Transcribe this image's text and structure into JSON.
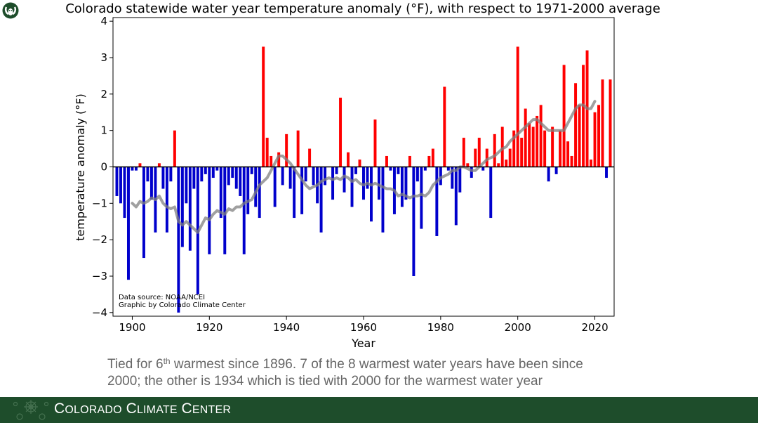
{
  "chart_data": {
    "type": "bar",
    "title": "Colorado statewide water year temperature anomaly (°F), with respect to 1971-2000 average",
    "xlabel": "Year",
    "ylabel": "temperature anomaly (°F)",
    "xlim": [
      1895,
      2025
    ],
    "ylim": [
      -4.1,
      4.1
    ],
    "xticks": [
      1900,
      1920,
      1940,
      1960,
      1980,
      2000,
      2020
    ],
    "yticks": [
      -4,
      -3,
      -2,
      -1,
      0,
      1,
      2,
      3,
      4
    ],
    "xtick_labels": [
      "1900",
      "1920",
      "1940",
      "1960",
      "1980",
      "2000",
      "2020"
    ],
    "ytick_labels": [
      "−4",
      "−3",
      "−2",
      "−1",
      "0",
      "1",
      "2",
      "3",
      "4"
    ],
    "positive_color": "#ff0000",
    "negative_color": "#0000cc",
    "smooth_color": "#808080",
    "annotation": [
      "Data source: NOAA/NCEI",
      "Graphic by Colorado Climate Center"
    ],
    "series": [
      {
        "name": "annual anomaly",
        "x": [
          1896,
          1897,
          1898,
          1899,
          1900,
          1901,
          1902,
          1903,
          1904,
          1905,
          1906,
          1907,
          1908,
          1909,
          1910,
          1911,
          1912,
          1913,
          1914,
          1915,
          1916,
          1917,
          1918,
          1919,
          1920,
          1921,
          1922,
          1923,
          1924,
          1925,
          1926,
          1927,
          1928,
          1929,
          1930,
          1931,
          1932,
          1933,
          1934,
          1935,
          1936,
          1937,
          1938,
          1939,
          1940,
          1941,
          1942,
          1943,
          1944,
          1945,
          1946,
          1947,
          1948,
          1949,
          1950,
          1951,
          1952,
          1953,
          1954,
          1955,
          1956,
          1957,
          1958,
          1959,
          1960,
          1961,
          1962,
          1963,
          1964,
          1965,
          1966,
          1967,
          1968,
          1969,
          1970,
          1971,
          1972,
          1973,
          1974,
          1975,
          1976,
          1977,
          1978,
          1979,
          1980,
          1981,
          1982,
          1983,
          1984,
          1985,
          1986,
          1987,
          1988,
          1989,
          1990,
          1991,
          1992,
          1993,
          1994,
          1995,
          1996,
          1997,
          1998,
          1999,
          2000,
          2001,
          2002,
          2003,
          2004,
          2005,
          2006,
          2007,
          2008,
          2009,
          2010,
          2011,
          2012,
          2013,
          2014,
          2015,
          2016,
          2017,
          2018,
          2019,
          2020,
          2021,
          2022,
          2023,
          2024
        ],
        "values": [
          -0.8,
          -1.0,
          -1.4,
          -3.1,
          -0.1,
          -0.1,
          0.1,
          -2.5,
          -0.4,
          -0.9,
          -1.8,
          0.1,
          -0.6,
          -1.8,
          -0.4,
          1.0,
          -4.0,
          -2.2,
          -1.0,
          -2.3,
          -0.6,
          -3.5,
          -0.4,
          -0.2,
          -2.4,
          -0.3,
          -0.1,
          -1.4,
          -2.4,
          -0.5,
          -0.3,
          -0.6,
          -0.8,
          -2.4,
          -1.3,
          -0.2,
          -1.1,
          -1.4,
          3.3,
          0.8,
          0.3,
          -1.1,
          0.4,
          -0.5,
          0.9,
          -0.6,
          -1.4,
          1.0,
          -1.3,
          -0.4,
          0.5,
          -0.5,
          -1.0,
          -1.8,
          -0.5,
          0.0,
          -0.9,
          -0.2,
          1.9,
          -0.7,
          0.4,
          -1.1,
          -0.2,
          0.2,
          -0.9,
          -0.6,
          -1.5,
          1.3,
          -0.9,
          -1.8,
          0.3,
          -0.1,
          -1.3,
          -0.2,
          -1.1,
          -0.9,
          0.3,
          -3.0,
          -0.4,
          -1.7,
          -0.1,
          0.3,
          0.5,
          -1.9,
          -0.5,
          2.2,
          -0.1,
          -0.6,
          -1.6,
          -0.7,
          0.8,
          0.1,
          -0.3,
          0.5,
          0.8,
          -0.1,
          0.5,
          -1.4,
          0.9,
          0.1,
          1.1,
          0.2,
          0.5,
          1.0,
          3.3,
          0.8,
          1.6,
          1.2,
          1.1,
          1.4,
          1.7,
          1.0,
          -0.4,
          1.1,
          -0.2,
          1.0,
          2.8,
          0.7,
          0.3,
          2.3,
          1.7,
          2.8,
          3.2,
          0.2,
          1.5,
          1.7,
          2.4,
          -0.3,
          2.4
        ]
      },
      {
        "name": "smoothed (running mean)",
        "x": [
          1900,
          1901,
          1902,
          1903,
          1904,
          1905,
          1906,
          1907,
          1908,
          1909,
          1910,
          1911,
          1912,
          1913,
          1914,
          1915,
          1916,
          1917,
          1918,
          1919,
          1920,
          1921,
          1922,
          1923,
          1924,
          1925,
          1926,
          1927,
          1928,
          1929,
          1930,
          1931,
          1932,
          1933,
          1934,
          1935,
          1936,
          1937,
          1938,
          1939,
          1940,
          1941,
          1942,
          1943,
          1944,
          1945,
          1946,
          1947,
          1948,
          1949,
          1950,
          1951,
          1952,
          1953,
          1954,
          1955,
          1956,
          1957,
          1958,
          1959,
          1960,
          1961,
          1962,
          1963,
          1964,
          1965,
          1966,
          1967,
          1968,
          1969,
          1970,
          1971,
          1972,
          1973,
          1974,
          1975,
          1976,
          1977,
          1978,
          1979,
          1980,
          1981,
          1982,
          1983,
          1984,
          1985,
          1986,
          1987,
          1988,
          1989,
          1990,
          1991,
          1992,
          1993,
          1994,
          1995,
          1996,
          1997,
          1998,
          1999,
          2000,
          2001,
          2002,
          2003,
          2004,
          2005,
          2006,
          2007,
          2008,
          2009,
          2010,
          2011,
          2012,
          2013,
          2014,
          2015,
          2016,
          2017,
          2018,
          2019,
          2020
        ],
        "values": [
          -1.0,
          -1.1,
          -0.95,
          -1.0,
          -0.95,
          -0.85,
          -0.9,
          -0.8,
          -1.0,
          -1.1,
          -1.15,
          -1.1,
          -1.5,
          -1.6,
          -1.5,
          -1.6,
          -1.7,
          -1.8,
          -1.6,
          -1.4,
          -1.45,
          -1.3,
          -1.2,
          -1.25,
          -1.3,
          -1.15,
          -1.2,
          -1.1,
          -1.1,
          -1.0,
          -0.95,
          -0.9,
          -0.7,
          -0.5,
          -0.4,
          -0.3,
          -0.1,
          0.1,
          0.3,
          0.3,
          0.2,
          0.1,
          -0.05,
          -0.2,
          -0.35,
          -0.5,
          -0.6,
          -0.55,
          -0.5,
          -0.4,
          -0.35,
          -0.3,
          -0.35,
          -0.3,
          -0.35,
          -0.25,
          -0.3,
          -0.4,
          -0.35,
          -0.45,
          -0.5,
          -0.45,
          -0.5,
          -0.45,
          -0.5,
          -0.55,
          -0.6,
          -0.6,
          -0.65,
          -0.8,
          -0.75,
          -0.8,
          -0.85,
          -0.8,
          -0.8,
          -0.75,
          -0.8,
          -0.7,
          -0.5,
          -0.4,
          -0.3,
          -0.25,
          -0.2,
          -0.1,
          -0.1,
          0.0,
          0.0,
          -0.05,
          -0.1,
          -0.1,
          0.0,
          0.1,
          0.2,
          0.25,
          0.3,
          0.4,
          0.5,
          0.55,
          0.7,
          0.8,
          0.9,
          1.0,
          1.1,
          1.2,
          1.3,
          1.3,
          1.2,
          1.1,
          1.0,
          1.0,
          1.0,
          1.0,
          1.0,
          1.2,
          1.4,
          1.6,
          1.7,
          1.7,
          1.6,
          1.6,
          1.8
        ]
      }
    ]
  },
  "caption": {
    "line1_pre": "Tied for 6",
    "line1_sup": "th",
    "line1_post": " warmest since 1896. 7 of the 8 warmest water years have been since",
    "line2": "2000; the other is 1934 which is tied with 2000 for the warmest water year"
  },
  "footer": {
    "brand_c1": "C",
    "brand_w1": "OLORADO",
    "brand_c2": "C",
    "brand_w2": "LIMATE",
    "brand_c3": "C",
    "brand_w3": "ENTER",
    "bg_color": "#1e4d2b"
  }
}
